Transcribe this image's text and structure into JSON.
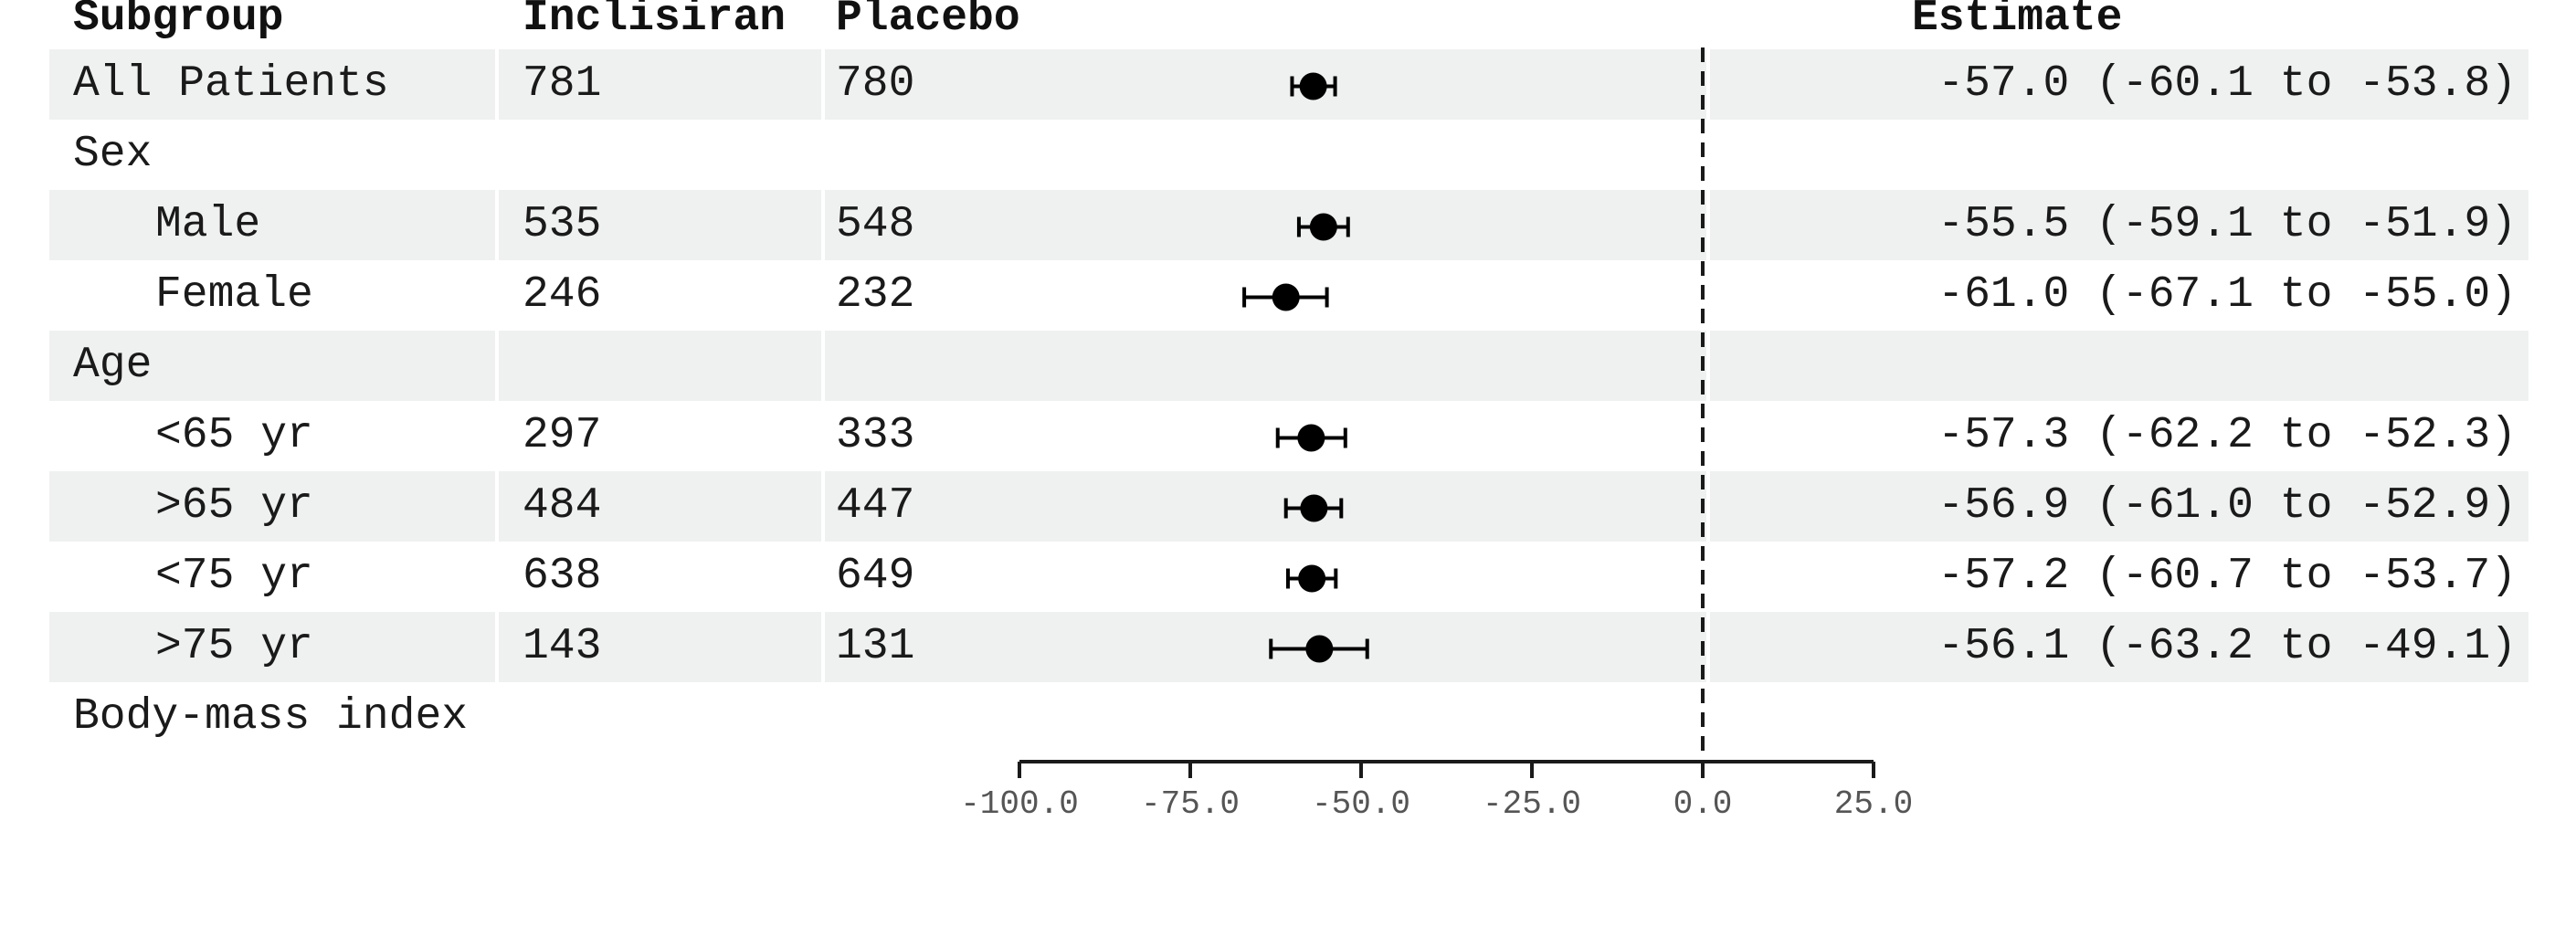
{
  "headers": {
    "subgroup": "Subgroup",
    "inclisiran": "Inclisiran",
    "placebo": "Placebo",
    "estimate": "Estimate"
  },
  "rows": [
    {
      "label": "All Patients",
      "indent": false,
      "inclisiran": "781",
      "placebo": "780",
      "estimate": "-57.0 (-60.1 to -53.8)"
    },
    {
      "label": "Sex",
      "indent": false,
      "inclisiran": "",
      "placebo": "",
      "estimate": ""
    },
    {
      "label": "Male",
      "indent": true,
      "inclisiran": "535",
      "placebo": "548",
      "estimate": "-55.5 (-59.1 to -51.9)"
    },
    {
      "label": "Female",
      "indent": true,
      "inclisiran": "246",
      "placebo": "232",
      "estimate": "-61.0 (-67.1 to -55.0)"
    },
    {
      "label": "Age",
      "indent": false,
      "inclisiran": "",
      "placebo": "",
      "estimate": ""
    },
    {
      "label": "<65 yr",
      "indent": true,
      "inclisiran": "297",
      "placebo": "333",
      "estimate": "-57.3 (-62.2 to -52.3)"
    },
    {
      "label": ">65 yr",
      "indent": true,
      "inclisiran": "484",
      "placebo": "447",
      "estimate": "-56.9 (-61.0 to -52.9)"
    },
    {
      "label": "<75 yr",
      "indent": true,
      "inclisiran": "638",
      "placebo": "649",
      "estimate": "-57.2 (-60.7 to -53.7)"
    },
    {
      "label": ">75 yr",
      "indent": true,
      "inclisiran": "143",
      "placebo": "131",
      "estimate": "-56.1 (-63.2 to -49.1)"
    },
    {
      "label": "Body-mass index",
      "indent": false,
      "inclisiran": "",
      "placebo": "",
      "estimate": ""
    }
  ],
  "chart_data": {
    "type": "forest",
    "categories": [
      "All Patients",
      "Male",
      "Female",
      "<65 yr",
      ">65 yr",
      "<75 yr",
      ">75 yr"
    ],
    "estimates": [
      -57.0,
      -55.5,
      -61.0,
      -57.3,
      -56.9,
      -57.2,
      -56.1
    ],
    "ci_lower": [
      -60.1,
      -59.1,
      -67.1,
      -62.2,
      -61.0,
      -60.7,
      -63.2
    ],
    "ci_upper": [
      -53.8,
      -51.9,
      -55.0,
      -52.3,
      -52.9,
      -53.7,
      -49.1
    ],
    "xlim": [
      -100,
      25
    ],
    "xticks": [
      -100,
      -75,
      -50,
      -25,
      0,
      25
    ],
    "tick_labels": [
      "-100.0",
      "-75.0",
      "-50.0",
      "-25.0",
      "0.0",
      "25.0"
    ],
    "reference_line": 0,
    "point_color": "#000000",
    "band_color": "#eff1f0"
  }
}
